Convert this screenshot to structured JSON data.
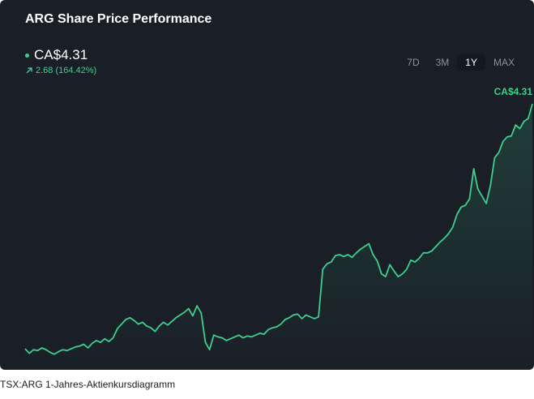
{
  "card": {
    "title": "ARG Share Price Performance",
    "price": "CA$4.31",
    "change": "2.68 (164.42%)",
    "last_value_label": "CA$4.31",
    "ranges": [
      {
        "label": "7D",
        "active": false
      },
      {
        "label": "3M",
        "active": false
      },
      {
        "label": "1Y",
        "active": true
      },
      {
        "label": "MAX",
        "active": false
      }
    ]
  },
  "caption": "TSX:ARG 1-Jahres-Aktienkursdiagramm",
  "colors": {
    "background": "#1a1f27",
    "line": "#3ecf8e",
    "accent_text": "#3ecf8e"
  },
  "icons": {
    "change": "arrow-up-right-icon"
  },
  "chart_data": {
    "type": "area",
    "series": [
      {
        "values": [
          1.63,
          1.58,
          1.62,
          1.61,
          1.64,
          1.62,
          1.59,
          1.57,
          1.6,
          1.62,
          1.61,
          1.63,
          1.65,
          1.66,
          1.68,
          1.64,
          1.69,
          1.72,
          1.7,
          1.74,
          1.71,
          1.75,
          1.85,
          1.9,
          1.95,
          1.97,
          1.94,
          1.9,
          1.92,
          1.88,
          1.86,
          1.82,
          1.88,
          1.92,
          1.89,
          1.93,
          1.97,
          2.0,
          2.03,
          2.07,
          1.99,
          2.1,
          2.02,
          1.7,
          1.62,
          1.78,
          1.76,
          1.75,
          1.72,
          1.74,
          1.76,
          1.78,
          1.75,
          1.77,
          1.76,
          1.78,
          1.8,
          1.79,
          1.84,
          1.86,
          1.87,
          1.9,
          1.95,
          1.97,
          2.0,
          2.01,
          1.96,
          2.0,
          1.98,
          1.96,
          1.98,
          2.5,
          2.56,
          2.58,
          2.65,
          2.66,
          2.64,
          2.66,
          2.63,
          2.68,
          2.72,
          2.75,
          2.78,
          2.66,
          2.59,
          2.45,
          2.42,
          2.55,
          2.48,
          2.42,
          2.45,
          2.5,
          2.6,
          2.58,
          2.62,
          2.68,
          2.68,
          2.7,
          2.75,
          2.8,
          2.84,
          2.89,
          2.96,
          3.1,
          3.18,
          3.2,
          3.27,
          3.6,
          3.38,
          3.3,
          3.22,
          3.42,
          3.72,
          3.78,
          3.9,
          3.95,
          3.96,
          4.08,
          4.04,
          4.12,
          4.15,
          4.31
        ],
        "first": 1.63,
        "last": 4.31
      }
    ],
    "ylim": [
      1.4,
      4.4
    ],
    "grid": false,
    "area_fill": true
  }
}
